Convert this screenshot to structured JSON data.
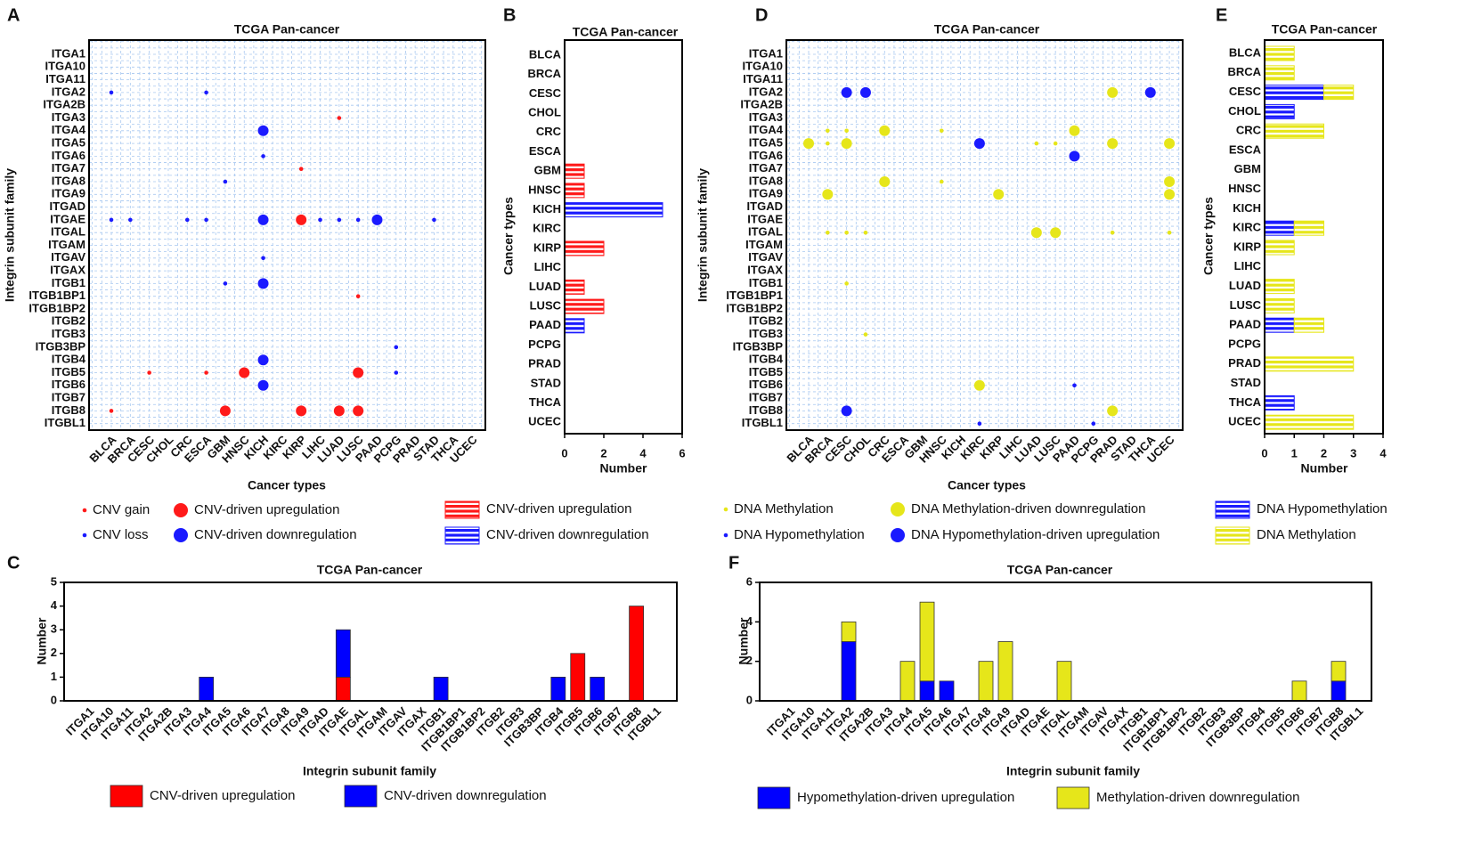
{
  "chart_data": [
    {
      "type": "dot",
      "label": "A",
      "title": "TCGA Pan-cancer",
      "xlabel": "Cancer types",
      "ylabel": "Integrin subunit family",
      "grid": true,
      "categories": [
        "BLCA",
        "BRCA",
        "CESC",
        "CHOL",
        "CRC",
        "ESCA",
        "GBM",
        "HNSC",
        "KICH",
        "KIRC",
        "KIRP",
        "LIHC",
        "LUAD",
        "LUSC",
        "PAAD",
        "PCPG",
        "PRAD",
        "STAD",
        "THCA",
        "UCEC"
      ],
      "y_categories": [
        "ITGA1",
        "ITGA10",
        "ITGA11",
        "ITGA2",
        "ITGA2B",
        "ITGA3",
        "ITGA4",
        "ITGA5",
        "ITGA6",
        "ITGA7",
        "ITGA8",
        "ITGA9",
        "ITGAD",
        "ITGAE",
        "ITGAL",
        "ITGAM",
        "ITGAV",
        "ITGAX",
        "ITGB1",
        "ITGB1BP1",
        "ITGB1BP2",
        "ITGB2",
        "ITGB3",
        "ITGB3BP",
        "ITGB4",
        "ITGB5",
        "ITGB6",
        "ITGB7",
        "ITGB8",
        "ITGBL1"
      ],
      "series": [
        {
          "name": "CNV gain",
          "color": "#ff1a1a",
          "marker": "small",
          "x": [
            "LUAD",
            "KIRP",
            "LUSC",
            "CESC",
            "ESCA",
            "BLCA"
          ],
          "y": [
            "ITGA3",
            "ITGA7",
            "ITGB1BP1",
            "ITGB5",
            "ITGB5",
            "ITGB8"
          ]
        },
        {
          "name": "CNV-driven upregulation",
          "color": "#ff1a1a",
          "marker": "large",
          "x": [
            "KIRP",
            "HNSC",
            "LUSC",
            "GBM",
            "KIRP",
            "LUAD",
            "LUSC"
          ],
          "y": [
            "ITGAE",
            "ITGB5",
            "ITGB5",
            "ITGB8",
            "ITGB8",
            "ITGB8",
            "ITGB8"
          ]
        },
        {
          "name": "CNV loss",
          "color": "#1a1aff",
          "marker": "small",
          "x": [
            "BLCA",
            "ESCA",
            "KICH",
            "GBM",
            "BLCA",
            "BRCA",
            "CRC",
            "ESCA",
            "LIHC",
            "LUAD",
            "LUSC",
            "STAD",
            "KICH",
            "GBM",
            "PCPG",
            "PCPG"
          ],
          "y": [
            "ITGA2",
            "ITGA2",
            "ITGA6",
            "ITGA8",
            "ITGAE",
            "ITGAE",
            "ITGAE",
            "ITGAE",
            "ITGAE",
            "ITGAE",
            "ITGAE",
            "ITGAE",
            "ITGAV",
            "ITGB1",
            "ITGB3BP",
            "ITGB5"
          ]
        },
        {
          "name": "CNV-driven downregulation",
          "color": "#1a1aff",
          "marker": "large",
          "x": [
            "KICH",
            "KICH",
            "PAAD",
            "KICH",
            "KICH",
            "KICH"
          ],
          "y": [
            "ITGA4",
            "ITGAE",
            "ITGAE",
            "ITGB1",
            "ITGB4",
            "ITGB6"
          ]
        }
      ]
    },
    {
      "type": "hbar",
      "label": "B",
      "title": "TCGA Pan-cancer",
      "xlabel": "Number",
      "ylabel": "Cancer types",
      "categories": [
        "BLCA",
        "BRCA",
        "CESC",
        "CHOL",
        "CRC",
        "ESCA",
        "GBM",
        "HNSC",
        "KICH",
        "KIRC",
        "KIRP",
        "LIHC",
        "LUAD",
        "LUSC",
        "PAAD",
        "PCPG",
        "PRAD",
        "STAD",
        "THCA",
        "UCEC"
      ],
      "xlim": [
        0,
        6
      ],
      "xticks": [
        0,
        2,
        4,
        6
      ],
      "series": [
        {
          "name": "CNV-driven upregulation",
          "color": "#ff1a1a",
          "values": [
            0,
            0,
            0,
            0,
            0,
            0,
            1,
            1,
            0,
            0,
            2,
            0,
            1,
            2,
            0,
            0,
            0,
            0,
            0,
            0
          ]
        },
        {
          "name": "CNV-driven downregulation",
          "color": "#1a1aff",
          "values": [
            0,
            0,
            0,
            0,
            0,
            0,
            0,
            0,
            5,
            0,
            0,
            0,
            0,
            0,
            1,
            0,
            0,
            0,
            0,
            0
          ]
        }
      ]
    },
    {
      "type": "bar",
      "label": "C",
      "title": "TCGA Pan-cancer",
      "xlabel": "Integrin subunit family",
      "ylabel": "Number",
      "categories": [
        "ITGA1",
        "ITGA10",
        "ITGA11",
        "ITGA2",
        "ITGA2B",
        "ITGA3",
        "ITGA4",
        "ITGA5",
        "ITGA6",
        "ITGA7",
        "ITGA8",
        "ITGA9",
        "ITGAD",
        "ITGAE",
        "ITGAL",
        "ITGAM",
        "ITGAV",
        "ITGAX",
        "ITGB1",
        "ITGB1BP1",
        "ITGB1BP2",
        "ITGB2",
        "ITGB3",
        "ITGB3BP",
        "ITGB4",
        "ITGB5",
        "ITGB6",
        "ITGB7",
        "ITGB8",
        "ITGBL1"
      ],
      "ylim": [
        0,
        5
      ],
      "yticks": [
        0,
        1,
        2,
        3,
        4,
        5
      ],
      "series": [
        {
          "name": "CNV-driven upregulation",
          "color": "#ff0000",
          "values": [
            0,
            0,
            0,
            0,
            0,
            0,
            0,
            0,
            0,
            0,
            0,
            0,
            0,
            1,
            0,
            0,
            0,
            0,
            0,
            0,
            0,
            0,
            0,
            0,
            0,
            2,
            0,
            0,
            4,
            0
          ]
        },
        {
          "name": "CNV-driven downregulation",
          "color": "#0000ff",
          "values": [
            0,
            0,
            0,
            0,
            0,
            0,
            1,
            0,
            0,
            0,
            0,
            0,
            0,
            2,
            0,
            0,
            0,
            0,
            1,
            0,
            0,
            0,
            0,
            0,
            1,
            0,
            1,
            0,
            0,
            0
          ]
        }
      ]
    },
    {
      "type": "dot",
      "label": "D",
      "title": "TCGA Pan-cancer",
      "xlabel": "Cancer types",
      "ylabel": "Integrin subunit family",
      "grid": true,
      "categories": [
        "BLCA",
        "BRCA",
        "CESC",
        "CHOL",
        "CRC",
        "ESCA",
        "GBM",
        "HNSC",
        "KICH",
        "KIRC",
        "KIRP",
        "LIHC",
        "LUAD",
        "LUSC",
        "PAAD",
        "PCPG",
        "PRAD",
        "STAD",
        "THCA",
        "UCEC"
      ],
      "y_categories": [
        "ITGA1",
        "ITGA10",
        "ITGA11",
        "ITGA2",
        "ITGA2B",
        "ITGA3",
        "ITGA4",
        "ITGA5",
        "ITGA6",
        "ITGA7",
        "ITGA8",
        "ITGA9",
        "ITGAD",
        "ITGAE",
        "ITGAL",
        "ITGAM",
        "ITGAV",
        "ITGAX",
        "ITGB1",
        "ITGB1BP1",
        "ITGB1BP2",
        "ITGB2",
        "ITGB3",
        "ITGB3BP",
        "ITGB4",
        "ITGB5",
        "ITGB6",
        "ITGB7",
        "ITGB8",
        "ITGBL1"
      ],
      "series": [
        {
          "name": "DNA Methylation",
          "color": "#e6e61a",
          "marker": "small",
          "x": [
            "BRCA",
            "CESC",
            "HNSC",
            "BRCA",
            "LUAD",
            "LUSC",
            "HNSC",
            "BRCA",
            "CESC",
            "CHOL",
            "PRAD",
            "UCEC",
            "CESC",
            "CHOL"
          ],
          "y": [
            "ITGA4",
            "ITGA4",
            "ITGA4",
            "ITGA5",
            "ITGA5",
            "ITGA5",
            "ITGA8",
            "ITGAL",
            "ITGAL",
            "ITGAL",
            "ITGAL",
            "ITGAL",
            "ITGB1",
            "ITGB3"
          ]
        },
        {
          "name": "DNA Methylation-driven downregulation",
          "color": "#e6e61a",
          "marker": "large",
          "x": [
            "PRAD",
            "CRC",
            "PAAD",
            "BLCA",
            "CESC",
            "PRAD",
            "UCEC",
            "CRC",
            "UCEC",
            "BRCA",
            "KIRP",
            "UCEC",
            "LUAD",
            "LUSC",
            "KIRC",
            "PRAD"
          ],
          "y": [
            "ITGA2",
            "ITGA4",
            "ITGA4",
            "ITGA5",
            "ITGA5",
            "ITGA5",
            "ITGA5",
            "ITGA8",
            "ITGA8",
            "ITGA9",
            "ITGA9",
            "ITGA9",
            "ITGAL",
            "ITGAL",
            "ITGB6",
            "ITGB8"
          ]
        },
        {
          "name": "DNA Hypomethylation",
          "color": "#1a1aff",
          "marker": "small",
          "x": [
            "PAAD",
            "KIRC",
            "PCPG"
          ],
          "y": [
            "ITGB6",
            "ITGBL1",
            "ITGBL1"
          ]
        },
        {
          "name": "DNA Hypomethylation-driven upregulation",
          "color": "#1a1aff",
          "marker": "large",
          "x": [
            "CESC",
            "CHOL",
            "THCA",
            "KIRC",
            "PAAD",
            "CESC"
          ],
          "y": [
            "ITGA2",
            "ITGA2",
            "ITGA2",
            "ITGA5",
            "ITGA6",
            "ITGB8"
          ]
        }
      ]
    },
    {
      "type": "hbar",
      "label": "E",
      "title": "TCGA Pan-cancer",
      "xlabel": "Number",
      "ylabel": "Cancer types",
      "categories": [
        "BLCA",
        "BRCA",
        "CESC",
        "CHOL",
        "CRC",
        "ESCA",
        "GBM",
        "HNSC",
        "KICH",
        "KIRC",
        "KIRP",
        "LIHC",
        "LUAD",
        "LUSC",
        "PAAD",
        "PCPG",
        "PRAD",
        "STAD",
        "THCA",
        "UCEC"
      ],
      "xlim": [
        0,
        4
      ],
      "xticks": [
        0,
        1,
        2,
        3,
        4
      ],
      "series": [
        {
          "name": "DNA Hypomethylation",
          "color": "#1a1aff",
          "values": [
            0,
            0,
            2,
            1,
            0,
            0,
            0,
            0,
            0,
            1,
            0,
            0,
            0,
            0,
            1,
            0,
            0,
            0,
            1,
            0
          ]
        },
        {
          "name": "DNA Methylation",
          "color": "#e6e61a",
          "values": [
            1,
            1,
            1,
            0,
            2,
            0,
            0,
            0,
            0,
            1,
            1,
            0,
            1,
            1,
            1,
            0,
            3,
            0,
            0,
            3
          ]
        }
      ]
    },
    {
      "type": "bar",
      "label": "F",
      "title": "TCGA Pan-cancer",
      "xlabel": "Integrin subunit family",
      "ylabel": "Number",
      "categories": [
        "ITGA1",
        "ITGA10",
        "ITGA11",
        "ITGA2",
        "ITGA2B",
        "ITGA3",
        "ITGA4",
        "ITGA5",
        "ITGA6",
        "ITGA7",
        "ITGA8",
        "ITGA9",
        "ITGAD",
        "ITGAE",
        "ITGAL",
        "ITGAM",
        "ITGAV",
        "ITGAX",
        "ITGB1",
        "ITGB1BP1",
        "ITGB1BP2",
        "ITGB2",
        "ITGB3",
        "ITGB3BP",
        "ITGB4",
        "ITGB5",
        "ITGB6",
        "ITGB7",
        "ITGB8",
        "ITGBL1"
      ],
      "ylim": [
        0,
        6
      ],
      "yticks": [
        0,
        2,
        4,
        6
      ],
      "series": [
        {
          "name": "Hypomethylation-driven upregulation",
          "color": "#0000ff",
          "values": [
            0,
            0,
            0,
            3,
            0,
            0,
            0,
            1,
            1,
            0,
            0,
            0,
            0,
            0,
            0,
            0,
            0,
            0,
            0,
            0,
            0,
            0,
            0,
            0,
            0,
            0,
            0,
            0,
            1,
            0
          ]
        },
        {
          "name": "Methylation-driven downregulation",
          "color": "#e6e61a",
          "values": [
            0,
            0,
            0,
            1,
            0,
            0,
            2,
            4,
            0,
            0,
            2,
            3,
            0,
            0,
            2,
            0,
            0,
            0,
            0,
            0,
            0,
            0,
            0,
            0,
            0,
            0,
            1,
            0,
            1,
            0
          ]
        }
      ]
    }
  ]
}
